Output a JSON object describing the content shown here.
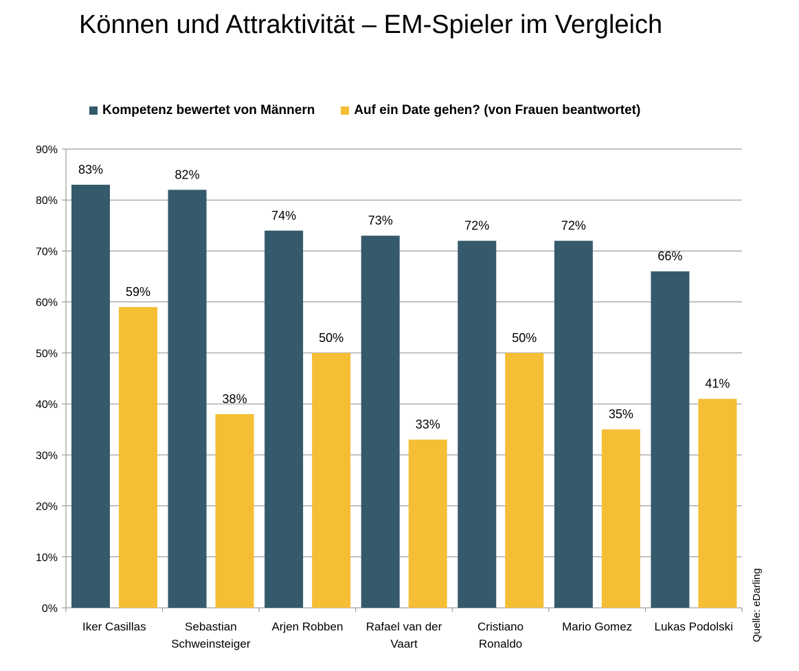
{
  "chart_data": {
    "type": "bar",
    "title": "Können und Attraktivität – EM-Spieler im Vergleich",
    "categories": [
      "Iker Casillas",
      "Sebastian Schweinsteiger",
      "Arjen Robben",
      "Rafael van der Vaart",
      "Cristiano Ronaldo",
      "Mario Gomez",
      "Lukas Podolski"
    ],
    "category_lines": [
      [
        "Iker Casillas"
      ],
      [
        "Sebastian",
        "Schweinsteiger"
      ],
      [
        "Arjen Robben"
      ],
      [
        "Rafael van der",
        "Vaart"
      ],
      [
        "Cristiano",
        "Ronaldo"
      ],
      [
        "Mario Gomez"
      ],
      [
        "Lukas Podolski"
      ]
    ],
    "series": [
      {
        "name": "Kompetenz bewertet von Männern",
        "color": "#355A6B",
        "values": [
          83,
          82,
          74,
          73,
          72,
          72,
          66
        ],
        "labels": [
          "83%",
          "82%",
          "74%",
          "73%",
          "72%",
          "72%",
          "66%"
        ]
      },
      {
        "name": "Auf ein Date gehen? (von Frauen beantwortet)",
        "color": "#F5BE35",
        "values": [
          59,
          38,
          50,
          33,
          50,
          35,
          41
        ],
        "labels": [
          "59%",
          "38%",
          "50%",
          "33%",
          "50%",
          "35%",
          "41%"
        ]
      }
    ],
    "ylim": [
      0,
      90
    ],
    "yticks": [
      0,
      10,
      20,
      30,
      40,
      50,
      60,
      70,
      80,
      90
    ],
    "ytick_labels": [
      "0%",
      "10%",
      "20%",
      "30%",
      "40%",
      "50%",
      "60%",
      "70%",
      "80%",
      "90%"
    ],
    "grid": true,
    "legend_position": "top",
    "source": "Quelle: eDarling"
  }
}
